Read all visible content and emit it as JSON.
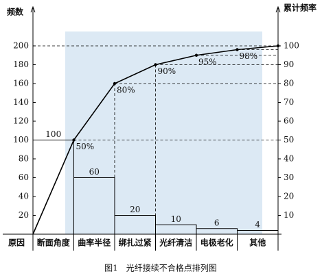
{
  "chart_data": {
    "type": "pareto",
    "y_label": "频数",
    "y2_label": "累计频率",
    "category_header": "原因",
    "categories": [
      "断面角度",
      "曲率半径",
      "绑扎过紧",
      "光纤清洁",
      "电极老化",
      "其他"
    ],
    "values": [
      100,
      60,
      20,
      10,
      6,
      4
    ],
    "cumulative": [
      50,
      80,
      90,
      95,
      98,
      100
    ],
    "cumulative_labels": [
      "50%",
      "80%",
      "90%",
      "95%",
      "98%",
      null
    ],
    "ylim": [
      0,
      200
    ],
    "yticks": [
      20,
      40,
      60,
      80,
      100,
      120,
      140,
      160,
      180,
      200
    ],
    "y2lim": [
      0,
      100
    ],
    "y2ticks": [
      10,
      20,
      30,
      40,
      50,
      60,
      70,
      80,
      90,
      100
    ],
    "color": "#000000",
    "caption": "图1　光纤接续不合格点排列图"
  }
}
